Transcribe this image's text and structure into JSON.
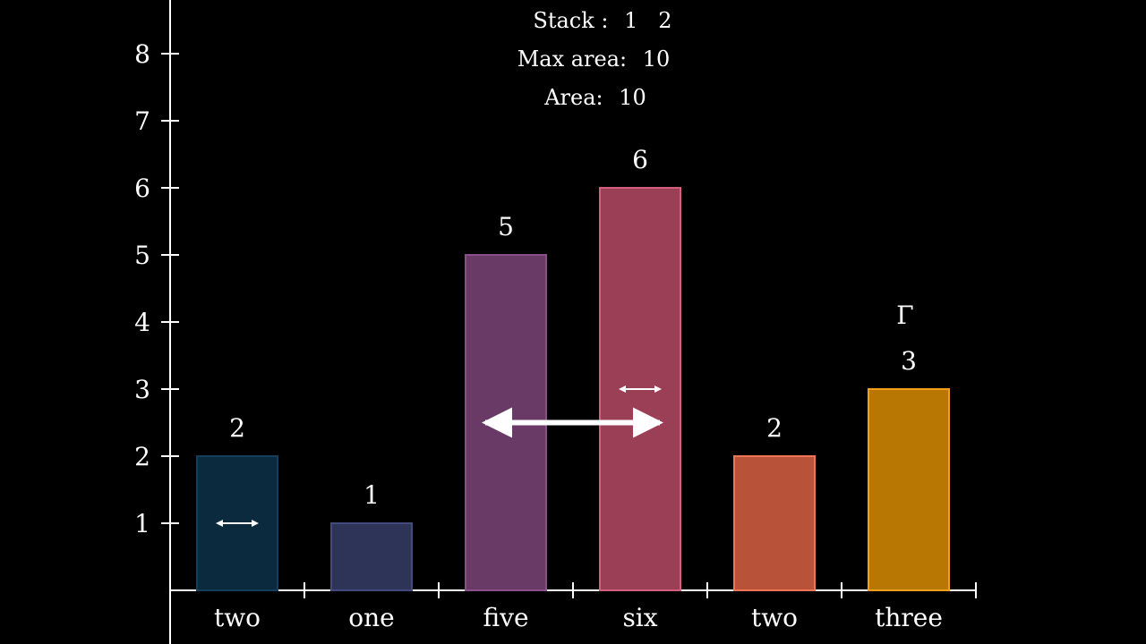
{
  "chart_data": {
    "type": "bar",
    "categories": [
      "two",
      "one",
      "five",
      "six",
      "two",
      "three"
    ],
    "values": [
      2,
      1,
      5,
      6,
      2,
      3
    ],
    "value_labels": [
      "2",
      "1",
      "5",
      "6",
      "2",
      "3"
    ],
    "bar_colors": [
      "#0c2a3d",
      "#2e3457",
      "#6a3a67",
      "#9b3f57",
      "#b85238",
      "#b87602"
    ],
    "bar_edge_colors": [
      "#12405c",
      "#434b7e",
      "#8b4f89",
      "#d35f7c",
      "#f07558",
      "#f0a01c"
    ],
    "y_ticks": [
      1,
      2,
      3,
      4,
      5,
      6,
      7,
      8
    ],
    "ylim": [
      0,
      8.9
    ],
    "title": "",
    "xlabel": "",
    "ylabel": "",
    "grid": false,
    "legend": false
  },
  "stats": {
    "stack_label": "Stack :",
    "stack_values": "1   2",
    "max_area_label": "Max area:",
    "max_area_value": "10",
    "area_label": "Area:",
    "area_value": "10"
  },
  "annotations": {
    "pointer_marker": "Γ",
    "arrows": [
      {
        "name": "width-arrow-small-bar-two",
        "from_bar": 0,
        "to_bar": 0,
        "y": 1,
        "thick": false
      },
      {
        "name": "width-arrow-small-bar-six",
        "from_bar": 3,
        "to_bar": 3,
        "y": 3,
        "thick": false
      },
      {
        "name": "width-arrow-large-five-six",
        "from_bar": 2,
        "to_bar": 3,
        "y": 2.5,
        "thick": true
      }
    ]
  },
  "colors": {
    "background": "#000000",
    "axis": "#ffffff",
    "text": "#ffffff"
  }
}
